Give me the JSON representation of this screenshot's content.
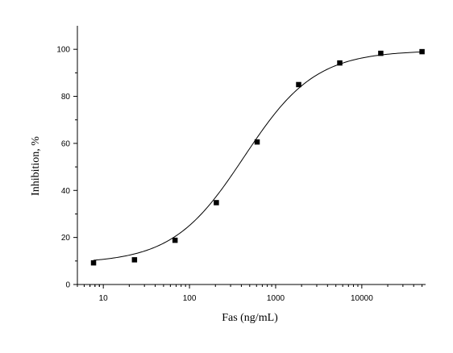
{
  "chart_data": {
    "type": "scatter",
    "title": "",
    "xlabel": "Fas (ng/mL)",
    "ylabel": "Inhibition, %",
    "x_scale": "log",
    "xlim": [
      5,
      55000
    ],
    "ylim": [
      0,
      110
    ],
    "x_ticks": [
      10,
      100,
      1000,
      10000
    ],
    "x_tick_labels": [
      "10",
      "100",
      "1000",
      "10000"
    ],
    "y_ticks": [
      0,
      20,
      40,
      60,
      80,
      100
    ],
    "y_tick_labels": [
      "0",
      "20",
      "40",
      "60",
      "80",
      "100"
    ],
    "grid": false,
    "legend": "none",
    "series": [
      {
        "points": [
          {
            "x": 7.7,
            "y": 9.2
          },
          {
            "x": 23,
            "y": 10.5
          },
          {
            "x": 68,
            "y": 18.8
          },
          {
            "x": 205,
            "y": 34.8
          },
          {
            "x": 610,
            "y": 60.6
          },
          {
            "x": 1850,
            "y": 85.0
          },
          {
            "x": 5550,
            "y": 94.2
          },
          {
            "x": 16600,
            "y": 98.3
          },
          {
            "x": 50000,
            "y": 99.0
          }
        ]
      }
    ],
    "fit_curve": {
      "type": "logistic",
      "bottom": 9.0,
      "top": 99.5,
      "ec50": 430,
      "hill": 1.05
    },
    "colors": {
      "markers": "#000000",
      "line": "#000000",
      "axes": "#000000"
    }
  }
}
